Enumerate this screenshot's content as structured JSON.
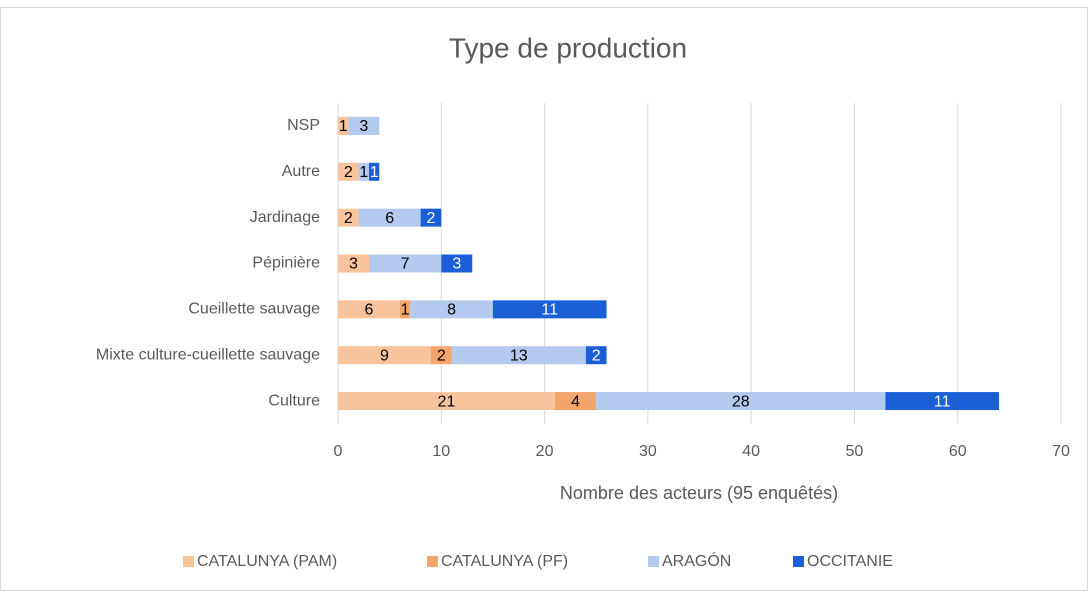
{
  "chart_data": {
    "type": "stacked_bar_horizontal",
    "title": "Type de production",
    "x_label": "Nombre des acteurs (95 enquêtés)",
    "categories": [
      "NSP",
      "Autre",
      "Jardinage",
      "Pépinière",
      "Cueillette sauvage",
      "Mixte culture-cueillette sauvage",
      "Culture"
    ],
    "series": [
      {
        "name": "CATALUNYA (PAM)",
        "color": "#f9c49c",
        "values": [
          1,
          2,
          2,
          3,
          6,
          9,
          21
        ]
      },
      {
        "name": "CATALUNYA (PF)",
        "color": "#f4a56b",
        "values": [
          null,
          null,
          null,
          null,
          1,
          2,
          4
        ]
      },
      {
        "name": "ARAGÓN",
        "color": "#b4c9ee",
        "values": [
          3,
          1,
          6,
          7,
          8,
          13,
          28
        ]
      },
      {
        "name": "OCCITANIE",
        "color": "#1a5fd6",
        "values": [
          null,
          1,
          2,
          3,
          11,
          2,
          11
        ]
      }
    ],
    "xlim": [
      0,
      70
    ],
    "xticks": [
      0,
      10,
      20,
      30,
      40,
      50,
      60,
      70
    ],
    "grid": true,
    "legend": "bottom"
  }
}
